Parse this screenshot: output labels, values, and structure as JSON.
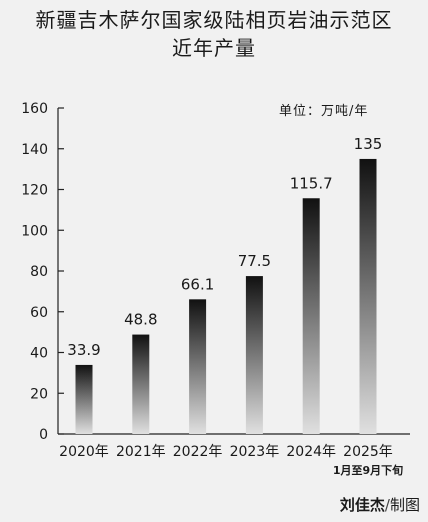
{
  "header": {
    "title_line1": "新疆吉木萨尔国家级陆相页岩油示范区",
    "title_line2": "近年产量"
  },
  "credit": {
    "author": "刘佳杰",
    "separator": "/",
    "role": "制图"
  },
  "chart_data": {
    "type": "bar",
    "title": "新疆吉木萨尔国家级陆相页岩油示范区近年产量",
    "unit_label": "单位：万吨/年",
    "categories": [
      "2020年",
      "2021年",
      "2022年",
      "2023年",
      "2024年",
      "2025年"
    ],
    "category_note": "1月至9月下旬",
    "values": [
      33.9,
      48.8,
      66.1,
      77.5,
      115.7,
      135
    ],
    "value_labels": [
      "33.9",
      "48.8",
      "66.1",
      "77.5",
      "115.7",
      "135"
    ],
    "yticks": [
      0,
      20,
      40,
      60,
      80,
      100,
      120,
      140,
      160
    ],
    "ylim": [
      0,
      160
    ],
    "grid": false,
    "bar_color_top": "#111111",
    "bar_color_bottom": "#e0e0e0"
  }
}
